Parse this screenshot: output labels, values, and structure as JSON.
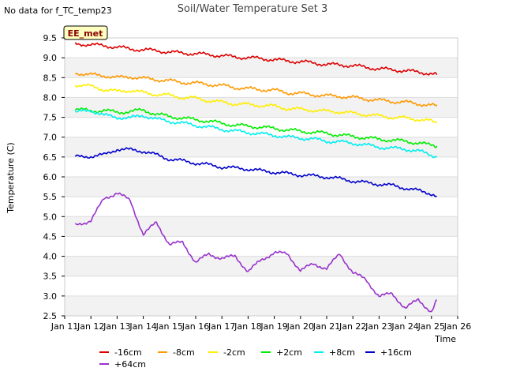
{
  "note": "No data for f_TC_temp23",
  "badge": "EE_met",
  "chart_data": {
    "type": "line",
    "title": "Soil/Water Temperature Set 3",
    "xlabel": "Time",
    "ylabel": "Temperature (C)",
    "ylim": [
      2.5,
      9.5
    ],
    "xlim": [
      11,
      26
    ],
    "x_tick_labels": [
      "Jan 11",
      "Jan 12",
      "Jan 13",
      "Jan 14",
      "Jan 15",
      "Jan 16",
      "Jan 17",
      "Jan 18",
      "Jan 19",
      "Jan 20",
      "Jan 21",
      "Jan 22",
      "Jan 23",
      "Jan 24",
      "Jan 25",
      "Jan 26"
    ],
    "y_ticks": [
      2.5,
      3.0,
      3.5,
      4.0,
      4.5,
      5.0,
      5.5,
      6.0,
      6.5,
      7.0,
      7.5,
      8.0,
      8.5,
      9.0,
      9.5
    ],
    "y_tick_labels": [
      "2.5",
      "3.0",
      "3.5",
      "4.0",
      "4.5",
      "5.0",
      "5.5",
      "6.0",
      "6.5",
      "7.0",
      "7.5",
      "8.0",
      "8.5",
      "9.0",
      "9.5"
    ],
    "grid": true,
    "legend_position": "bottom",
    "x": [
      11.4,
      12.0,
      12.5,
      13.0,
      13.5,
      14.0,
      14.5,
      15.0,
      15.5,
      16.0,
      16.5,
      17.0,
      17.5,
      18.0,
      18.5,
      19.0,
      19.5,
      20.0,
      20.5,
      21.0,
      21.5,
      22.0,
      22.5,
      23.0,
      23.5,
      24.0,
      24.5,
      25.0,
      25.2
    ],
    "series": [
      {
        "name": "-16cm",
        "color": "#dd0000",
        "values": [
          9.35,
          9.33,
          9.3,
          9.27,
          9.22,
          9.2,
          9.18,
          9.14,
          9.12,
          9.1,
          9.08,
          9.05,
          9.02,
          9.0,
          8.98,
          8.95,
          8.92,
          8.9,
          8.87,
          8.83,
          8.82,
          8.8,
          8.76,
          8.72,
          8.7,
          8.67,
          8.64,
          8.6,
          8.57
        ]
      },
      {
        "name": "-8cm",
        "color": "#ff9900",
        "values": [
          8.62,
          8.57,
          8.55,
          8.5,
          8.52,
          8.48,
          8.45,
          8.42,
          8.38,
          8.36,
          8.33,
          8.3,
          8.25,
          8.22,
          8.2,
          8.18,
          8.12,
          8.1,
          8.07,
          8.04,
          8.03,
          8.0,
          7.96,
          7.93,
          7.9,
          7.88,
          7.84,
          7.8,
          7.78
        ]
      },
      {
        "name": "-2cm",
        "color": "#ffee00",
        "values": [
          8.32,
          8.28,
          8.2,
          8.15,
          8.18,
          8.12,
          8.08,
          8.05,
          8.0,
          7.98,
          7.92,
          7.88,
          7.84,
          7.82,
          7.8,
          7.78,
          7.72,
          7.7,
          7.68,
          7.65,
          7.64,
          7.6,
          7.57,
          7.53,
          7.5,
          7.48,
          7.45,
          7.4,
          7.35
        ]
      },
      {
        "name": "+2cm",
        "color": "#00ee00",
        "values": [
          7.72,
          7.65,
          7.68,
          7.62,
          7.65,
          7.68,
          7.58,
          7.52,
          7.48,
          7.44,
          7.4,
          7.35,
          7.3,
          7.28,
          7.25,
          7.22,
          7.18,
          7.15,
          7.12,
          7.1,
          7.05,
          7.02,
          6.98,
          6.95,
          6.92,
          6.9,
          6.85,
          6.8,
          6.78
        ]
      },
      {
        "name": "+8cm",
        "color": "#00eeee",
        "values": [
          7.62,
          7.68,
          7.55,
          7.5,
          7.48,
          7.55,
          7.45,
          7.4,
          7.35,
          7.3,
          7.25,
          7.2,
          7.15,
          7.12,
          7.08,
          7.05,
          7.0,
          6.98,
          6.95,
          6.9,
          6.88,
          6.85,
          6.8,
          6.75,
          6.72,
          6.7,
          6.65,
          6.55,
          6.52
        ]
      },
      {
        "name": "+16cm",
        "color": "#0000cc",
        "values": [
          6.5,
          6.52,
          6.55,
          6.7,
          6.68,
          6.65,
          6.55,
          6.45,
          6.4,
          6.35,
          6.3,
          6.25,
          6.22,
          6.2,
          6.15,
          6.12,
          6.08,
          6.05,
          6.02,
          6.0,
          5.95,
          5.9,
          5.85,
          5.82,
          5.78,
          5.72,
          5.65,
          5.58,
          5.52
        ]
      },
      {
        "name": "+64cm",
        "color": "#9933cc",
        "values": [
          4.78,
          4.9,
          5.45,
          5.6,
          5.4,
          4.55,
          4.85,
          4.3,
          4.35,
          3.85,
          4.05,
          3.95,
          4.0,
          3.62,
          3.9,
          4.1,
          4.05,
          3.65,
          3.8,
          3.7,
          4.05,
          3.6,
          3.4,
          3.0,
          3.05,
          2.7,
          2.9,
          2.6,
          2.88
        ]
      }
    ]
  }
}
